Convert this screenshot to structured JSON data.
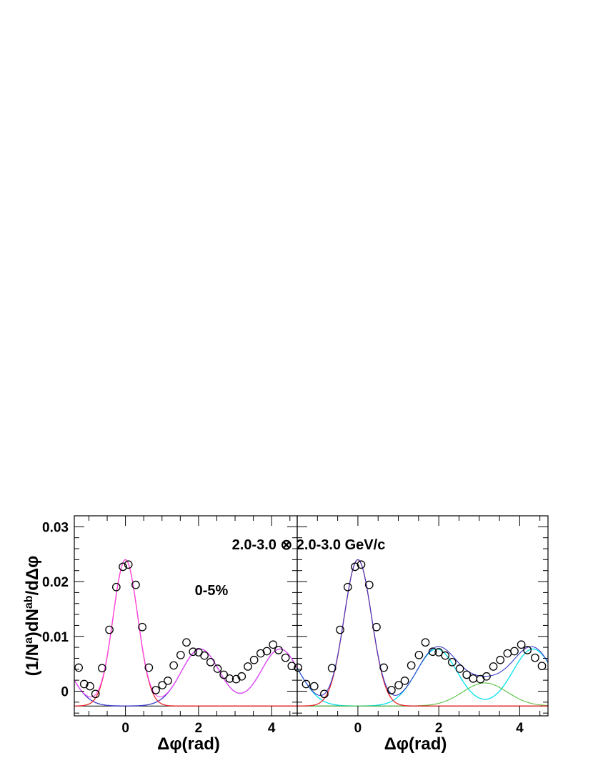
{
  "figure": {
    "annotation_energy": "2.0-3.0 ⊗ 2.0-3.0 GeV/c",
    "annotation_centrality": "0-5%",
    "ylabel": "(1/N^a)dN^ab/dΔφ"
  },
  "chart_data": [
    {
      "type": "scatter",
      "panel": "left",
      "xlabel": "Δφ(rad)",
      "ylabel": "(1/N^a)dN^ab/dΔφ",
      "xlim": [
        -1.4,
        4.7
      ],
      "ylim": [
        -0.0045,
        0.032
      ],
      "xticks": [
        0,
        2,
        4
      ],
      "yticks": [
        0,
        0.01,
        0.02,
        0.03
      ],
      "ytick_labels": [
        "0",
        "0.01",
        "0.02",
        "0.03"
      ],
      "baseline": -0.0027,
      "points": {
        "x": [
          -1.28,
          -1.13,
          -0.97,
          -0.82,
          -0.64,
          -0.44,
          -0.25,
          -0.07,
          0.08,
          0.28,
          0.46,
          0.64,
          0.83,
          1.01,
          1.16,
          1.32,
          1.51,
          1.67,
          1.85,
          2.0,
          2.16,
          2.33,
          2.52,
          2.69,
          2.85,
          3.03,
          3.18,
          3.35,
          3.52,
          3.7,
          3.87,
          4.04,
          4.19,
          4.38,
          4.55
        ],
        "y": [
          0.0043,
          0.0013,
          0.0009,
          -0.0005,
          0.0042,
          0.0112,
          0.019,
          0.0227,
          0.0231,
          0.0194,
          0.0117,
          0.0043,
          0.0002,
          0.0011,
          0.0019,
          0.0047,
          0.0066,
          0.0089,
          0.0072,
          0.0071,
          0.0065,
          0.0053,
          0.0041,
          0.003,
          0.0023,
          0.0022,
          0.0027,
          0.0045,
          0.0057,
          0.0069,
          0.0073,
          0.0085,
          0.0075,
          0.0061,
          0.0046
        ]
      },
      "curves": [
        {
          "component": "near-side gaussian",
          "color": "#e8232a",
          "amplitude": 0.0267,
          "center": 0,
          "sigma": 0.34
        },
        {
          "component": "away-side double gaussian",
          "color": "#3a3acc",
          "amplitude": 0.0104,
          "centers": [
            2.05,
            4.23
          ],
          "sigma": 0.52
        },
        {
          "component": "total fit",
          "color": "#ff44ff"
        },
        {
          "component": "baseline",
          "color": "#000000"
        }
      ]
    },
    {
      "type": "scatter",
      "panel": "right",
      "xlabel": "Δφ(rad)",
      "xlim": [
        -1.5,
        4.7
      ],
      "ylim": [
        -0.0045,
        0.032
      ],
      "xticks": [
        0,
        2,
        4
      ],
      "baseline": -0.0027,
      "points": {
        "x": [
          -1.48,
          -1.28,
          -1.08,
          -0.83,
          -0.64,
          -0.44,
          -0.25,
          -0.07,
          0.08,
          0.28,
          0.46,
          0.64,
          0.83,
          1.01,
          1.16,
          1.32,
          1.51,
          1.67,
          1.85,
          2.0,
          2.16,
          2.33,
          2.52,
          2.69,
          2.85,
          3.03,
          3.18,
          3.35,
          3.52,
          3.7,
          3.87,
          4.04,
          4.19,
          4.38,
          4.55
        ],
        "y": [
          0.0043,
          0.0013,
          0.0009,
          -0.0005,
          0.0042,
          0.0112,
          0.019,
          0.0227,
          0.0231,
          0.0194,
          0.0117,
          0.0043,
          0.0002,
          0.0011,
          0.0019,
          0.0047,
          0.0066,
          0.0089,
          0.0072,
          0.0071,
          0.0065,
          0.0053,
          0.0041,
          0.003,
          0.0023,
          0.0022,
          0.0027,
          0.0045,
          0.0057,
          0.0069,
          0.0073,
          0.0085,
          0.0075,
          0.0061,
          0.0046
        ]
      },
      "curves": [
        {
          "component": "near-side gaussian",
          "color": "#e8232a",
          "amplitude": 0.0267,
          "center": 0,
          "sigma": 0.34
        },
        {
          "component": "shoulder double gaussian",
          "color": "#00e0f0",
          "amplitude": 0.0104,
          "centers": [
            1.95,
            4.33
          ],
          "sigma": 0.5
        },
        {
          "component": "head gaussian",
          "color": "#55c040",
          "amplitude": 0.0042,
          "center": 3.14,
          "sigma": 0.55
        },
        {
          "component": "total fit",
          "color": "#3a3acc"
        },
        {
          "component": "baseline",
          "color": "#000000"
        }
      ]
    }
  ]
}
